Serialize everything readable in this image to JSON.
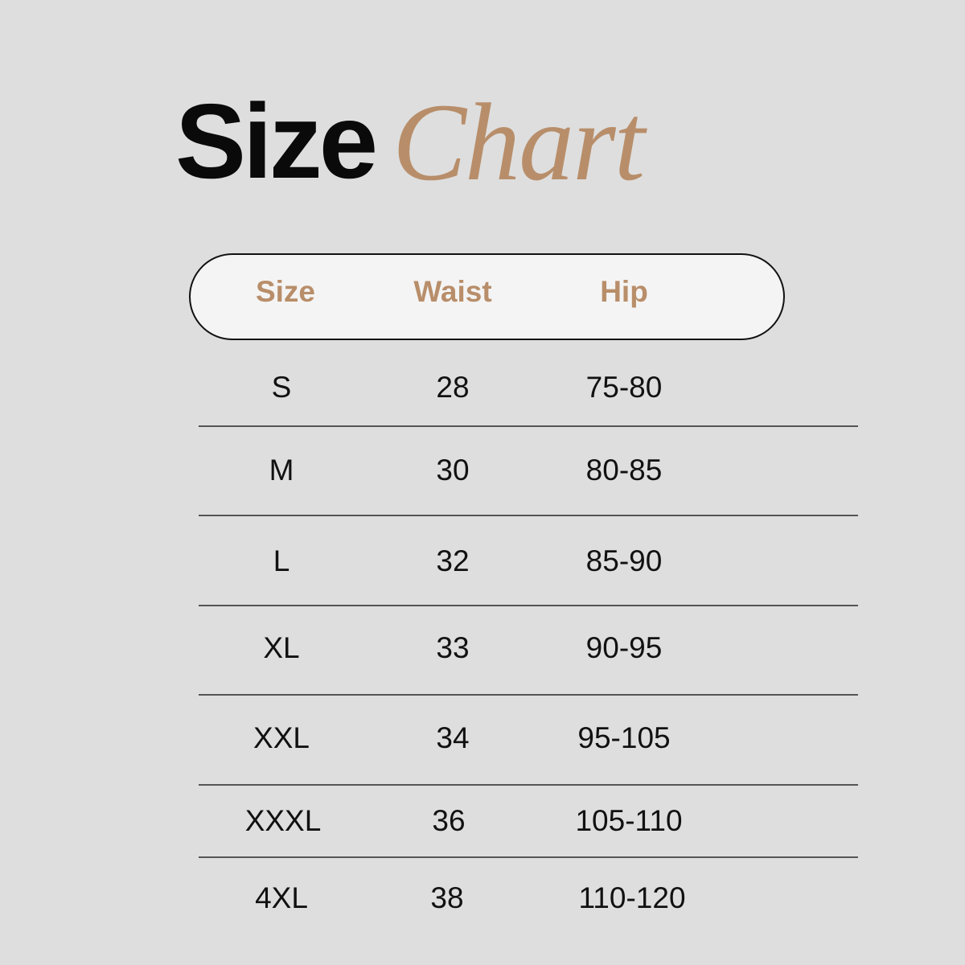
{
  "title": {
    "bold": "Size",
    "script": "Chart"
  },
  "colors": {
    "background": "#dedede",
    "accent": "#b88e6a"
  },
  "table": {
    "headers": [
      "Size",
      "Waist",
      "Hip"
    ],
    "rows": [
      [
        "S",
        "28",
        "75-80"
      ],
      [
        "M",
        "30",
        "80-85"
      ],
      [
        "L",
        "32",
        "85-90"
      ],
      [
        "XL",
        "33",
        "90-95"
      ],
      [
        "XXL",
        "34",
        "95-105"
      ],
      [
        "XXXL",
        "36",
        "105-110"
      ],
      [
        "4XL",
        "38",
        "110-120"
      ]
    ]
  }
}
